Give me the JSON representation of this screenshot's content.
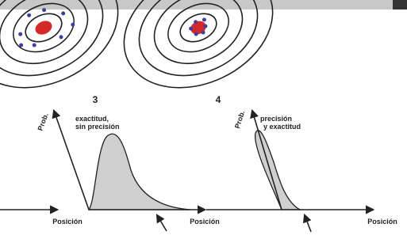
{
  "panels": [
    {
      "number": "3",
      "caption": [
        "exactitud,",
        "sin precisión"
      ],
      "y_axis": "Prob.",
      "x_axis": "Posición"
    },
    {
      "number": "4",
      "caption": [
        "precisión",
        "y exactitud"
      ],
      "y_axis": "Prob.",
      "x_axis": "Posición"
    }
  ],
  "previous_x_axis": "Posición"
}
